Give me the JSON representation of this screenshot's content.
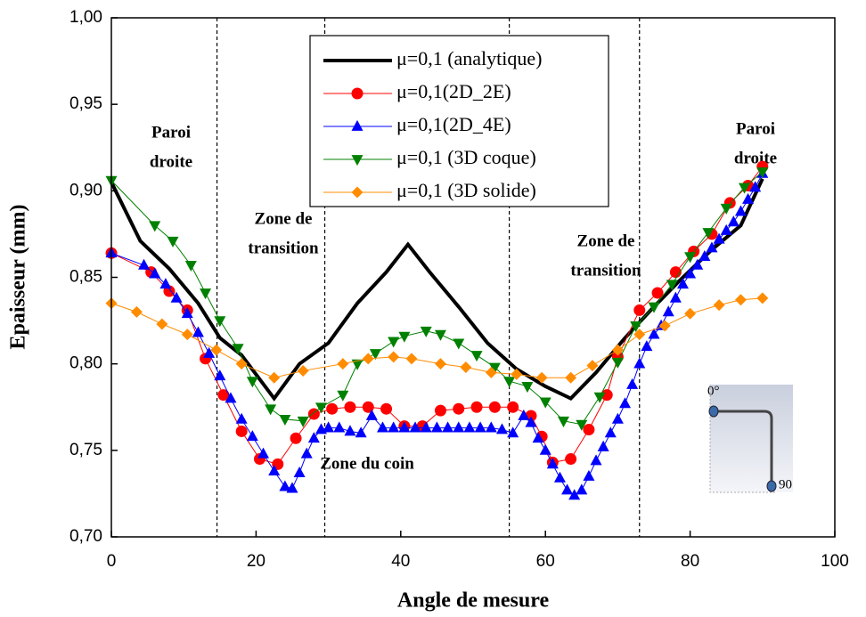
{
  "chart_data": {
    "type": "line",
    "xlabel": "Angle de mesure",
    "ylabel": "Epaisseur (mm)",
    "xlim": [
      0,
      100
    ],
    "xticks": [
      0,
      20,
      40,
      60,
      80,
      100
    ],
    "ylim": [
      0.7,
      1.0
    ],
    "yticks": [
      {
        "value": 0.7,
        "label": "0,70"
      },
      {
        "value": 0.75,
        "label": "0,75"
      },
      {
        "value": 0.8,
        "label": "0,80"
      },
      {
        "value": 0.85,
        "label": "0,85"
      },
      {
        "value": 0.9,
        "label": "0,90"
      },
      {
        "value": 0.95,
        "label": "0,95"
      },
      {
        "value": 1.0,
        "label": "1,00"
      }
    ],
    "vlines": [
      14.6,
      29.5,
      55,
      73
    ],
    "annotations": [
      {
        "lines": [
          "Paroi",
          "droite"
        ]
      },
      {
        "lines": [
          "Zone de",
          "transition"
        ]
      },
      {
        "lines": [
          "Zone du coin"
        ]
      },
      {
        "lines": [
          "Zone de",
          "transition"
        ]
      },
      {
        "lines": [
          "Paroi",
          "droite"
        ]
      }
    ],
    "inset_labels": [
      "0°",
      "90"
    ],
    "series": [
      {
        "name": "μ=0,1 (analytique)",
        "color": "#000000",
        "marker": "none",
        "x": [
          0,
          4,
          8,
          12,
          15,
          18,
          22.5,
          26,
          30,
          34,
          38,
          41,
          44,
          48,
          52,
          56,
          60,
          63.5,
          67,
          71,
          75,
          79,
          83,
          87,
          90
        ],
        "values": [
          0.905,
          0.871,
          0.855,
          0.835,
          0.815,
          0.805,
          0.78,
          0.8,
          0.812,
          0.835,
          0.853,
          0.869,
          0.853,
          0.833,
          0.812,
          0.797,
          0.787,
          0.78,
          0.795,
          0.815,
          0.833,
          0.85,
          0.866,
          0.88,
          0.907
        ]
      },
      {
        "name": "μ=0,1(2D_2E)",
        "color": "#ff0000",
        "marker": "circle",
        "x": [
          0,
          5.5,
          8,
          10.5,
          13,
          15.5,
          18,
          20.5,
          23,
          25.5,
          28,
          30.5,
          33,
          35.5,
          38,
          40.5,
          43,
          45.5,
          48,
          50.5,
          53,
          55.5,
          58,
          59.5,
          61,
          63.5,
          66,
          68.5,
          70,
          73,
          75.5,
          78,
          80.5,
          83,
          85.5,
          88,
          90
        ],
        "values": [
          0.864,
          0.853,
          0.842,
          0.831,
          0.803,
          0.782,
          0.761,
          0.745,
          0.742,
          0.757,
          0.771,
          0.774,
          0.775,
          0.775,
          0.774,
          0.764,
          0.764,
          0.773,
          0.774,
          0.775,
          0.775,
          0.775,
          0.77,
          0.758,
          0.743,
          0.745,
          0.762,
          0.782,
          0.804,
          0.831,
          0.841,
          0.853,
          0.865,
          0.875,
          0.893,
          0.903,
          0.914
        ]
      },
      {
        "name": "μ=0,1(2D_4E)",
        "color": "#0000ff",
        "marker": "triangle-up",
        "x": [
          0,
          4.5,
          6,
          7.5,
          9,
          10.5,
          12,
          13.5,
          15,
          16.5,
          18,
          19.5,
          21,
          22.5,
          24,
          25,
          26,
          27,
          28,
          29,
          30,
          31.5,
          33,
          34.5,
          36,
          37.5,
          39,
          40.5,
          42,
          43.5,
          45,
          46.5,
          48,
          49.5,
          51,
          52.5,
          54,
          55.5,
          57,
          58,
          59,
          60,
          61,
          62,
          63,
          64,
          65,
          66,
          67,
          68,
          69,
          70,
          71,
          72,
          73,
          74,
          75,
          76,
          77,
          78,
          79,
          80,
          81,
          82,
          83,
          84,
          85,
          86,
          87,
          88,
          89,
          90
        ],
        "values": [
          0.864,
          0.857,
          0.852,
          0.846,
          0.838,
          0.829,
          0.818,
          0.806,
          0.793,
          0.78,
          0.768,
          0.758,
          0.748,
          0.738,
          0.729,
          0.728,
          0.737,
          0.748,
          0.757,
          0.762,
          0.763,
          0.763,
          0.761,
          0.76,
          0.77,
          0.763,
          0.763,
          0.763,
          0.763,
          0.763,
          0.763,
          0.763,
          0.763,
          0.763,
          0.763,
          0.763,
          0.762,
          0.76,
          0.77,
          0.766,
          0.757,
          0.75,
          0.742,
          0.734,
          0.727,
          0.724,
          0.727,
          0.735,
          0.744,
          0.752,
          0.76,
          0.768,
          0.777,
          0.788,
          0.8,
          0.81,
          0.817,
          0.822,
          0.83,
          0.838,
          0.846,
          0.852,
          0.857,
          0.862,
          0.867,
          0.872,
          0.877,
          0.882,
          0.888,
          0.895,
          0.902,
          0.91
        ]
      },
      {
        "name": "μ=0,1 (3D coque)",
        "color": "#008000",
        "marker": "triangle-down",
        "x": [
          0,
          6,
          8.5,
          11,
          13,
          15,
          17.5,
          19.5,
          22,
          24,
          26.5,
          29,
          32,
          34,
          36.5,
          39,
          40.5,
          43.5,
          45.5,
          48,
          50.5,
          53,
          55,
          57.5,
          60,
          62.5,
          65,
          67.5,
          70,
          72.5,
          75,
          77.5,
          80,
          82.5,
          85,
          87.5,
          90
        ],
        "values": [
          0.906,
          0.88,
          0.871,
          0.857,
          0.841,
          0.825,
          0.809,
          0.79,
          0.774,
          0.768,
          0.767,
          0.775,
          0.782,
          0.8,
          0.806,
          0.813,
          0.816,
          0.819,
          0.817,
          0.812,
          0.805,
          0.798,
          0.79,
          0.787,
          0.778,
          0.767,
          0.765,
          0.781,
          0.801,
          0.822,
          0.833,
          0.846,
          0.862,
          0.876,
          0.89,
          0.902,
          0.911
        ]
      },
      {
        "name": "μ=0,1 (3D solide)",
        "color": "#ff8c00",
        "marker": "diamond",
        "x": [
          0,
          3.5,
          7,
          10.5,
          14.5,
          18,
          22.5,
          26.5,
          32,
          35.5,
          39,
          41.5,
          45.5,
          49,
          52.5,
          56,
          59.5,
          63.5,
          66.5,
          70,
          73,
          76.5,
          80,
          84,
          87,
          90
        ],
        "values": [
          0.835,
          0.83,
          0.823,
          0.817,
          0.808,
          0.8,
          0.792,
          0.796,
          0.8,
          0.803,
          0.804,
          0.803,
          0.8,
          0.798,
          0.795,
          0.794,
          0.792,
          0.792,
          0.799,
          0.808,
          0.817,
          0.822,
          0.829,
          0.834,
          0.837,
          0.838
        ]
      }
    ]
  }
}
